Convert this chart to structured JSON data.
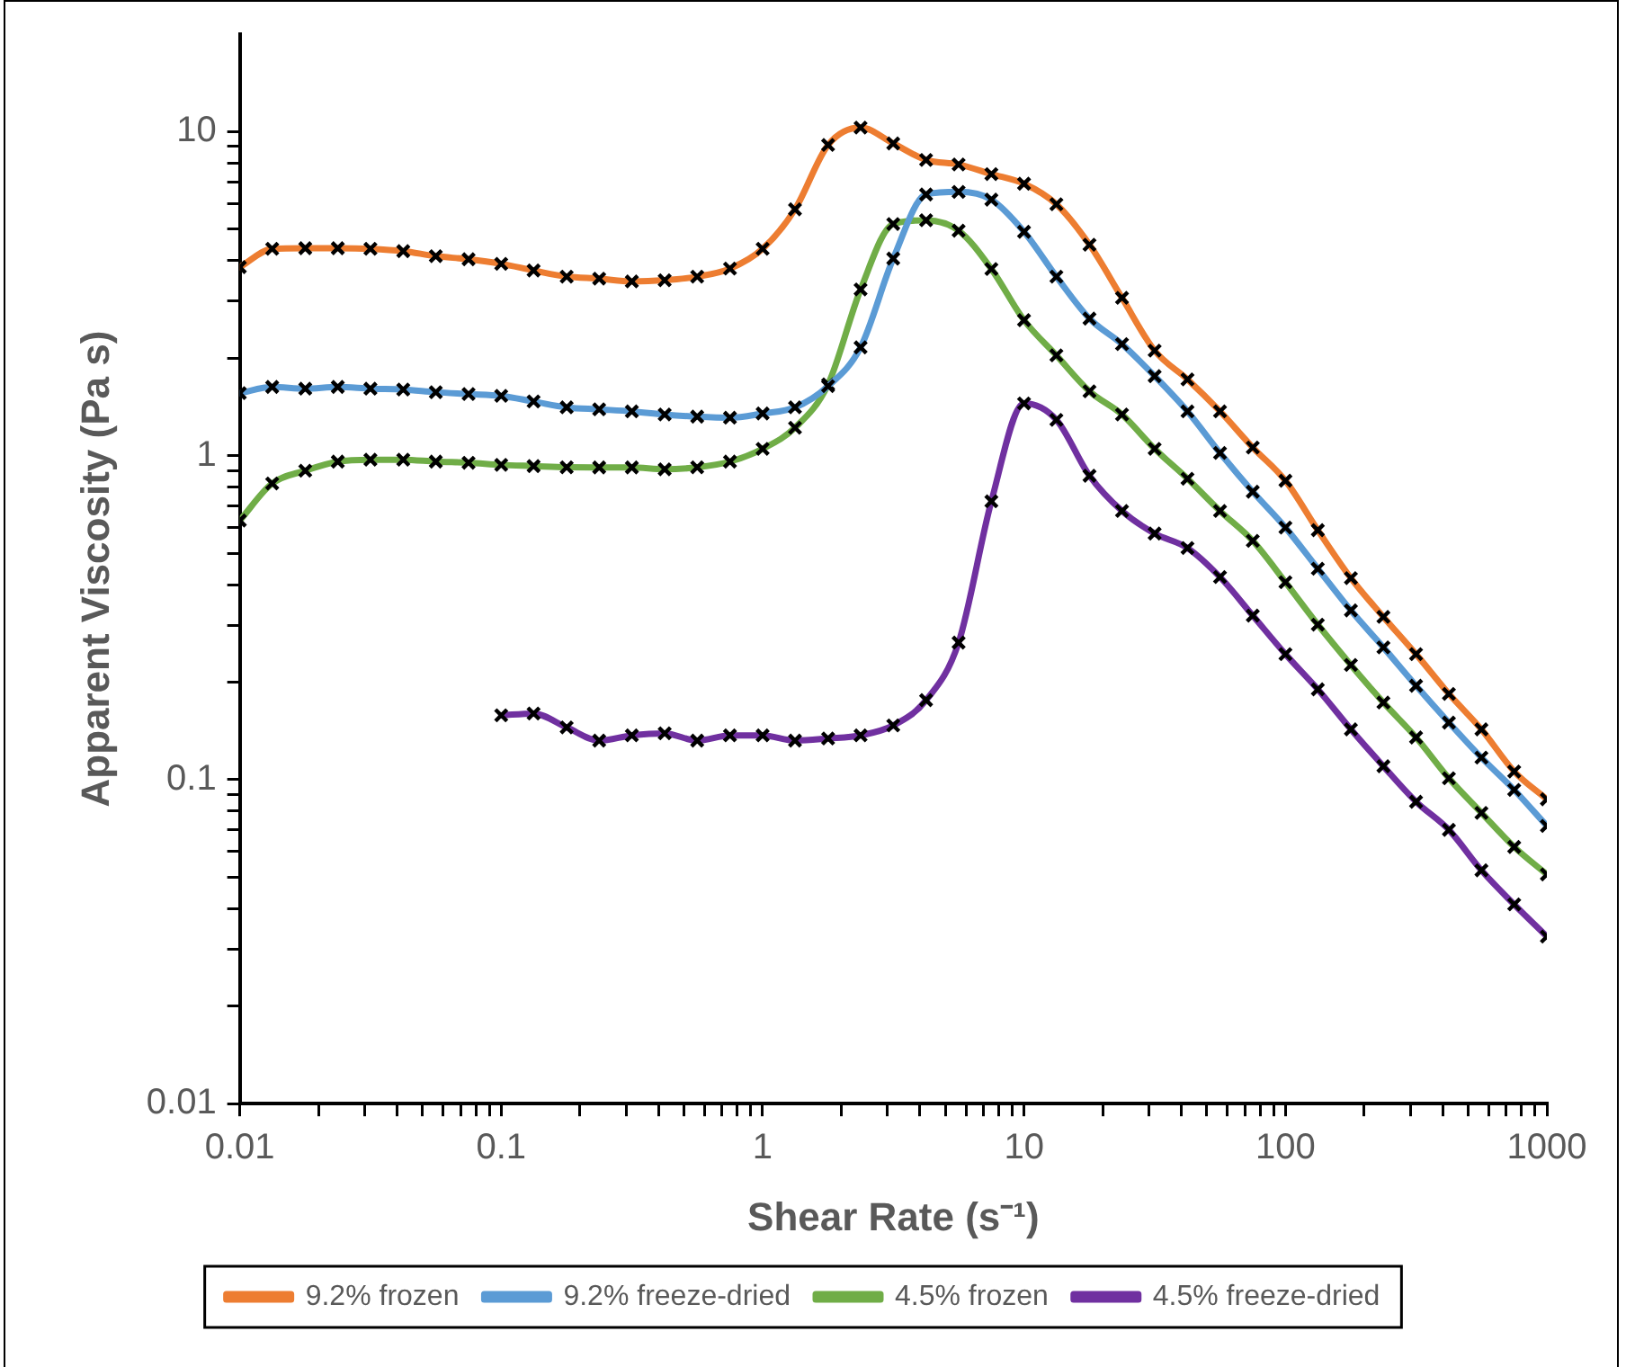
{
  "chart_data": {
    "type": "line",
    "xlabel": "Shear Rate (s⁻¹)",
    "ylabel": "Apparent Viscosity (Pa s)",
    "log": "xy",
    "marker": "cross",
    "line_style": "solid",
    "grid": false,
    "legend": "bottom",
    "xlim": [
      0.01,
      1000
    ],
    "ylim": [
      0.01,
      20
    ],
    "xticks": [
      0.01,
      {
        "value": 0.02,
        "label": null
      },
      {
        "value": 0.03,
        "label": null
      },
      {
        "value": 0.04,
        "label": null
      },
      {
        "value": 0.05,
        "label": null
      },
      {
        "value": 0.06,
        "label": null
      },
      {
        "value": 0.07,
        "label": null
      },
      {
        "value": 0.08,
        "label": null
      },
      {
        "value": 0.09,
        "label": null
      },
      0.1,
      {
        "value": 0.2,
        "label": null
      },
      {
        "value": 0.3,
        "label": null
      },
      {
        "value": 0.4,
        "label": null
      },
      {
        "value": 0.5,
        "label": null
      },
      {
        "value": 0.6,
        "label": null
      },
      {
        "value": 0.7,
        "label": null
      },
      {
        "value": 0.8,
        "label": null
      },
      {
        "value": 0.9,
        "label": null
      },
      1,
      {
        "value": 2,
        "label": null
      },
      {
        "value": 3,
        "label": null
      },
      {
        "value": 4,
        "label": null
      },
      {
        "value": 5,
        "label": null
      },
      {
        "value": 6,
        "label": null
      },
      {
        "value": 7,
        "label": null
      },
      {
        "value": 8,
        "label": null
      },
      {
        "value": 9,
        "label": null
      },
      10,
      {
        "value": 20,
        "label": null
      },
      {
        "value": 30,
        "label": null
      },
      {
        "value": 40,
        "label": null
      },
      {
        "value": 50,
        "label": null
      },
      {
        "value": 60,
        "label": null
      },
      {
        "value": 70,
        "label": null
      },
      {
        "value": 80,
        "label": null
      },
      {
        "value": 90,
        "label": null
      },
      100,
      {
        "value": 200,
        "label": null
      },
      {
        "value": 300,
        "label": null
      },
      {
        "value": 400,
        "label": null
      },
      {
        "value": 500,
        "label": null
      },
      {
        "value": 600,
        "label": null
      },
      {
        "value": 700,
        "label": null
      },
      {
        "value": 800,
        "label": null
      },
      {
        "value": 900,
        "label": null
      },
      1000
    ],
    "yticks": [
      0.01,
      {
        "value": 0.02,
        "label": null
      },
      {
        "value": 0.03,
        "label": null
      },
      {
        "value": 0.04,
        "label": null
      },
      {
        "value": 0.05,
        "label": null
      },
      {
        "value": 0.06,
        "label": null
      },
      {
        "value": 0.07,
        "label": null
      },
      {
        "value": 0.08,
        "label": null
      },
      {
        "value": 0.09,
        "label": null
      },
      0.1,
      {
        "value": 0.2,
        "label": null
      },
      {
        "value": 0.3,
        "label": null
      },
      {
        "value": 0.4,
        "label": null
      },
      {
        "value": 0.5,
        "label": null
      },
      {
        "value": 0.6,
        "label": null
      },
      {
        "value": 0.7,
        "label": null
      },
      {
        "value": 0.8,
        "label": null
      },
      {
        "value": 0.9,
        "label": null
      },
      1,
      {
        "value": 2,
        "label": null
      },
      {
        "value": 3,
        "label": null
      },
      {
        "value": 4,
        "label": null
      },
      {
        "value": 5,
        "label": null
      },
      {
        "value": 6,
        "label": null
      },
      {
        "value": 7,
        "label": null
      },
      {
        "value": 8,
        "label": null
      },
      {
        "value": 9,
        "label": null
      },
      10
    ],
    "x": [
      0.01,
      0.0133,
      0.0178,
      0.0237,
      0.0316,
      0.0422,
      0.0562,
      0.075,
      0.1,
      0.133,
      0.178,
      0.237,
      0.316,
      0.422,
      0.562,
      0.75,
      1,
      1.33,
      1.78,
      2.37,
      3.16,
      4.22,
      5.62,
      7.5,
      10,
      13.3,
      17.8,
      23.7,
      31.6,
      42.2,
      56.2,
      75,
      100,
      133,
      178,
      237,
      316,
      422,
      562,
      750,
      1000
    ],
    "series": [
      {
        "name": "9.2% frozen",
        "color": "#ed7d31",
        "values": [
          3.82,
          4.35,
          4.37,
          4.37,
          4.35,
          4.28,
          4.13,
          4.04,
          3.91,
          3.73,
          3.57,
          3.52,
          3.45,
          3.48,
          3.57,
          3.78,
          4.35,
          5.76,
          9.1,
          10.3,
          9.2,
          8.18,
          7.92,
          7.4,
          6.91,
          5.97,
          4.48,
          3.07,
          2.11,
          1.72,
          1.37,
          1.06,
          0.837,
          0.589,
          0.419,
          0.318,
          0.244,
          0.184,
          0.143,
          0.106,
          0.087
        ]
      },
      {
        "name": "9.2% freeze-dried",
        "color": "#5b9bd5",
        "values": [
          1.56,
          1.63,
          1.61,
          1.63,
          1.61,
          1.6,
          1.57,
          1.55,
          1.53,
          1.47,
          1.41,
          1.39,
          1.37,
          1.34,
          1.32,
          1.31,
          1.35,
          1.41,
          1.64,
          2.16,
          4.06,
          6.4,
          6.52,
          6.17,
          4.91,
          3.57,
          2.65,
          2.21,
          1.76,
          1.37,
          1.02,
          0.774,
          0.6,
          0.448,
          0.333,
          0.256,
          0.195,
          0.15,
          0.117,
          0.093,
          0.072
        ]
      },
      {
        "name": "4.5% frozen",
        "color": "#70ad47",
        "values": [
          0.631,
          0.821,
          0.899,
          0.959,
          0.972,
          0.972,
          0.959,
          0.951,
          0.937,
          0.929,
          0.921,
          0.92,
          0.92,
          0.908,
          0.921,
          0.959,
          1.05,
          1.22,
          1.66,
          3.26,
          5.19,
          5.33,
          4.95,
          3.77,
          2.62,
          2.04,
          1.58,
          1.34,
          1.05,
          0.849,
          0.675,
          0.546,
          0.407,
          0.301,
          0.226,
          0.173,
          0.135,
          0.101,
          0.079,
          0.062,
          0.051
        ]
      },
      {
        "name": "4.5% freeze-dried",
        "color": "#7030a0",
        "values": [
          null,
          null,
          null,
          null,
          null,
          null,
          null,
          null,
          0.158,
          0.16,
          0.145,
          0.132,
          0.137,
          0.139,
          0.132,
          0.137,
          0.137,
          0.132,
          0.134,
          0.137,
          0.147,
          0.176,
          0.265,
          0.723,
          1.45,
          1.29,
          0.867,
          0.675,
          0.575,
          0.519,
          0.422,
          0.321,
          0.244,
          0.19,
          0.143,
          0.11,
          0.0855,
          0.07,
          0.0525,
          0.0412,
          0.0328
        ]
      }
    ]
  }
}
